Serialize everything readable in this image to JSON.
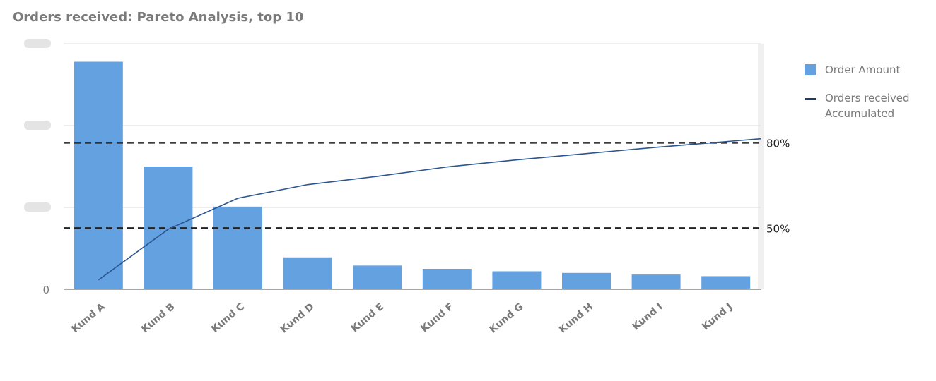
{
  "title": "Orders received: Pareto Analysis, top 10",
  "legend": {
    "items": [
      {
        "label": "Order Amount",
        "type": "bar",
        "color": "#64a1e0"
      },
      {
        "label": "Orders received Accumulated",
        "type": "line",
        "color": "#1f3c6e"
      }
    ]
  },
  "chart_data": {
    "type": "bar",
    "title": "Orders received: Pareto Analysis, top 10",
    "categories": [
      "Kund A",
      "Kund B",
      "Kund C",
      "Kund D",
      "Kund E",
      "Kund F",
      "Kund G",
      "Kund H",
      "Kund I",
      "Kund J"
    ],
    "y_left": {
      "ticks": [
        "0",
        "",
        "",
        ""
      ],
      "ylim": [
        0,
        3
      ],
      "note_values_in_gridline_steps": true
    },
    "y_right": {
      "ticks": [
        {
          "value": 50,
          "label": "50%"
        },
        {
          "value": 80,
          "label": "80%"
        }
      ],
      "ylim": [
        0,
        100
      ]
    },
    "series": [
      {
        "name": "Order Amount",
        "type": "bar",
        "color": "#64a1e0",
        "values": [
          2.78,
          1.5,
          1.01,
          0.39,
          0.29,
          0.25,
          0.22,
          0.2,
          0.18,
          0.16
        ]
      },
      {
        "name": "Orders received Accumulated",
        "type": "line",
        "axis": "right",
        "color": "#1f3c6e",
        "values": [
          31.8,
          49.6,
          60.5,
          65.3,
          68.2,
          71.5,
          74.0,
          76.2,
          78.4,
          80.4
        ]
      }
    ],
    "reference_lines": [
      {
        "value": 80,
        "label": "80%",
        "style": "dashed"
      },
      {
        "value": 50,
        "label": "50%",
        "style": "dashed"
      }
    ],
    "grid": true,
    "legend_position": "right"
  }
}
